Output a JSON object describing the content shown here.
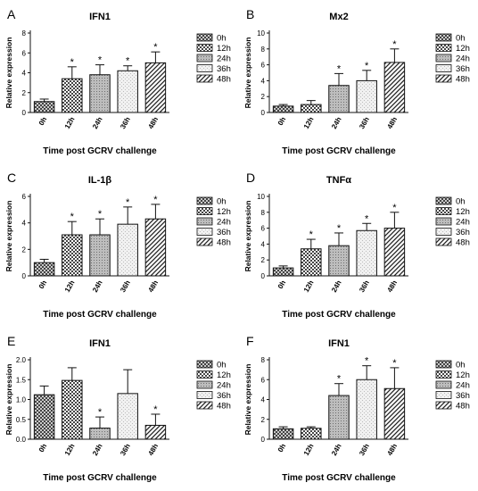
{
  "figure": {
    "panels": [
      "A",
      "B",
      "C",
      "D",
      "E",
      "F"
    ]
  },
  "chart_data": [
    {
      "panel_letter": "A",
      "type": "bar",
      "title": "IFN1",
      "xlabel": "Time post GCRV challenge",
      "ylabel": "Relative expression",
      "categories": [
        "0h",
        "12h",
        "24h",
        "36h",
        "48h"
      ],
      "values": [
        1.1,
        3.4,
        3.8,
        4.2,
        5.0
      ],
      "errors": [
        0.25,
        1.2,
        1.0,
        0.5,
        1.1
      ],
      "significance": [
        "",
        "*",
        "*",
        "*",
        "*"
      ],
      "ylim": [
        0,
        8
      ],
      "yticks": [
        0,
        2,
        4,
        6,
        8
      ],
      "legend": [
        "0h",
        "12h",
        "24h",
        "36h",
        "48h"
      ],
      "legend_position": "right",
      "grid": false
    },
    {
      "panel_letter": "B",
      "type": "bar",
      "title": "Mx2",
      "xlabel": "Time post GCRV challenge",
      "ylabel": "Relative expression",
      "categories": [
        "0h",
        "12h",
        "24h",
        "36h",
        "48h"
      ],
      "values": [
        0.8,
        1.0,
        3.4,
        4.0,
        6.3
      ],
      "errors": [
        0.2,
        0.5,
        1.5,
        1.3,
        1.7
      ],
      "significance": [
        "",
        "",
        "*",
        "*",
        "*"
      ],
      "ylim": [
        0,
        10
      ],
      "yticks": [
        0,
        2,
        4,
        6,
        8,
        10
      ],
      "legend": [
        "0h",
        "12h",
        "24h",
        "36h",
        "48h"
      ],
      "legend_position": "right",
      "grid": false
    },
    {
      "panel_letter": "C",
      "type": "bar",
      "title": "IL-1β",
      "xlabel": "Time post GCRV challenge",
      "ylabel": "Relative expression",
      "categories": [
        "0h",
        "12h",
        "24h",
        "36h",
        "48h"
      ],
      "values": [
        1.0,
        3.1,
        3.1,
        3.9,
        4.3
      ],
      "errors": [
        0.25,
        1.0,
        1.2,
        1.3,
        1.1
      ],
      "significance": [
        "",
        "*",
        "*",
        "*",
        "*"
      ],
      "ylim": [
        0,
        6
      ],
      "yticks": [
        0,
        2,
        4,
        6
      ],
      "legend": [
        "0h",
        "12h",
        "24h",
        "36h",
        "48h"
      ],
      "legend_position": "right",
      "grid": false
    },
    {
      "panel_letter": "D",
      "type": "bar",
      "title": "TNFα",
      "xlabel": "Time post GCRV challenge",
      "ylabel": "Relative expression",
      "categories": [
        "0h",
        "12h",
        "24h",
        "36h",
        "48h"
      ],
      "values": [
        1.0,
        3.4,
        3.8,
        5.7,
        6.0
      ],
      "errors": [
        0.25,
        1.2,
        1.6,
        0.9,
        2.0
      ],
      "significance": [
        "",
        "*",
        "*",
        "*",
        "*"
      ],
      "ylim": [
        0,
        10
      ],
      "yticks": [
        0,
        2,
        4,
        6,
        8,
        10
      ],
      "legend": [
        "0h",
        "12h",
        "24h",
        "36h",
        "48h"
      ],
      "legend_position": "right",
      "grid": false
    },
    {
      "panel_letter": "E",
      "type": "bar",
      "title": "IFN1",
      "xlabel": "Time post GCRV challenge",
      "ylabel": "Relative expression",
      "categories": [
        "0h",
        "12h",
        "24h",
        "36h",
        "48h"
      ],
      "values": [
        1.12,
        1.48,
        0.28,
        1.15,
        0.35
      ],
      "errors": [
        0.22,
        0.32,
        0.28,
        0.6,
        0.28
      ],
      "significance": [
        "",
        "",
        "*",
        "",
        "*"
      ],
      "ylim": [
        0,
        2.0
      ],
      "yticks": [
        0.0,
        0.5,
        1.0,
        1.5,
        2.0
      ],
      "legend": [
        "0h",
        "12h",
        "24h",
        "36h",
        "48h"
      ],
      "legend_position": "right",
      "grid": false
    },
    {
      "panel_letter": "F",
      "type": "bar",
      "title": "IFN1",
      "xlabel": "Time post GCRV challenge",
      "ylabel": "Relative expression",
      "categories": [
        "0h",
        "12h",
        "24h",
        "36h",
        "48h"
      ],
      "values": [
        1.05,
        1.1,
        4.4,
        6.0,
        5.1
      ],
      "errors": [
        0.2,
        0.15,
        1.2,
        1.4,
        2.1
      ],
      "significance": [
        "",
        "",
        "*",
        "*",
        "*"
      ],
      "ylim": [
        0,
        8
      ],
      "yticks": [
        0,
        2,
        4,
        6,
        8
      ],
      "legend": [
        "0h",
        "12h",
        "24h",
        "36h",
        "48h"
      ],
      "legend_position": "right",
      "grid": false
    }
  ]
}
